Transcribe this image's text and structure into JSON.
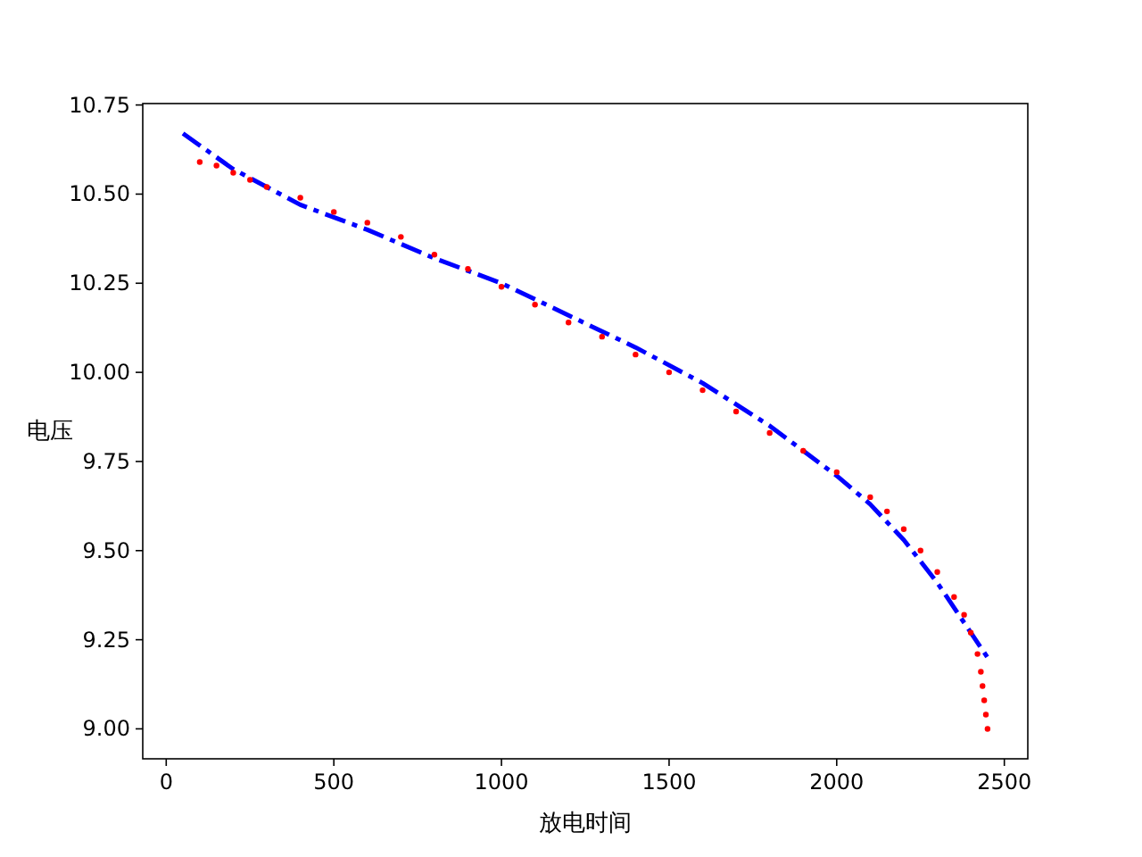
{
  "chart_data": {
    "type": "scatter",
    "xlabel": "放电时间",
    "ylabel": "电压",
    "xlim": [
      -70,
      2570
    ],
    "ylim": [
      8.916,
      10.754
    ],
    "xticks": [
      0,
      500,
      1000,
      1500,
      2000,
      2500
    ],
    "yticks": [
      {
        "value": 9.0,
        "label": "9.00"
      },
      {
        "value": 9.25,
        "label": "9.25"
      },
      {
        "value": 9.5,
        "label": "9.50"
      },
      {
        "value": 9.75,
        "label": "9.75"
      },
      {
        "value": 10.0,
        "label": "10.00"
      },
      {
        "value": 10.25,
        "label": "10.25"
      },
      {
        "value": 10.5,
        "label": "10.50"
      },
      {
        "value": 10.75,
        "label": "10.75"
      }
    ],
    "grid": false,
    "series": [
      {
        "type": "scatter",
        "color": "#ff0000",
        "marker": "circle",
        "x": [
          100,
          150,
          200,
          250,
          300,
          400,
          500,
          600,
          700,
          800,
          900,
          1000,
          1100,
          1200,
          1300,
          1400,
          1500,
          1600,
          1700,
          1800,
          1900,
          2000,
          2100,
          2150,
          2200,
          2250,
          2300,
          2350,
          2380,
          2400,
          2420,
          2430,
          2435,
          2440,
          2445,
          2450
        ],
        "values": [
          10.59,
          10.58,
          10.56,
          10.54,
          10.52,
          10.49,
          10.45,
          10.42,
          10.38,
          10.33,
          10.29,
          10.24,
          10.19,
          10.14,
          10.1,
          10.05,
          10.0,
          9.95,
          9.89,
          9.83,
          9.78,
          9.72,
          9.65,
          9.61,
          9.56,
          9.5,
          9.44,
          9.37,
          9.32,
          9.27,
          9.21,
          9.16,
          9.12,
          9.08,
          9.04,
          9.0
        ]
      },
      {
        "type": "line",
        "color": "#0000ff",
        "line_style": "dashdot",
        "x": [
          50,
          200,
          400,
          600,
          800,
          1000,
          1200,
          1400,
          1600,
          1800,
          2000,
          2100,
          2200,
          2300,
          2400,
          2450
        ],
        "values": [
          10.67,
          10.57,
          10.47,
          10.4,
          10.32,
          10.25,
          10.16,
          10.07,
          9.97,
          9.85,
          9.71,
          9.63,
          9.53,
          9.41,
          9.27,
          9.2
        ]
      }
    ]
  }
}
